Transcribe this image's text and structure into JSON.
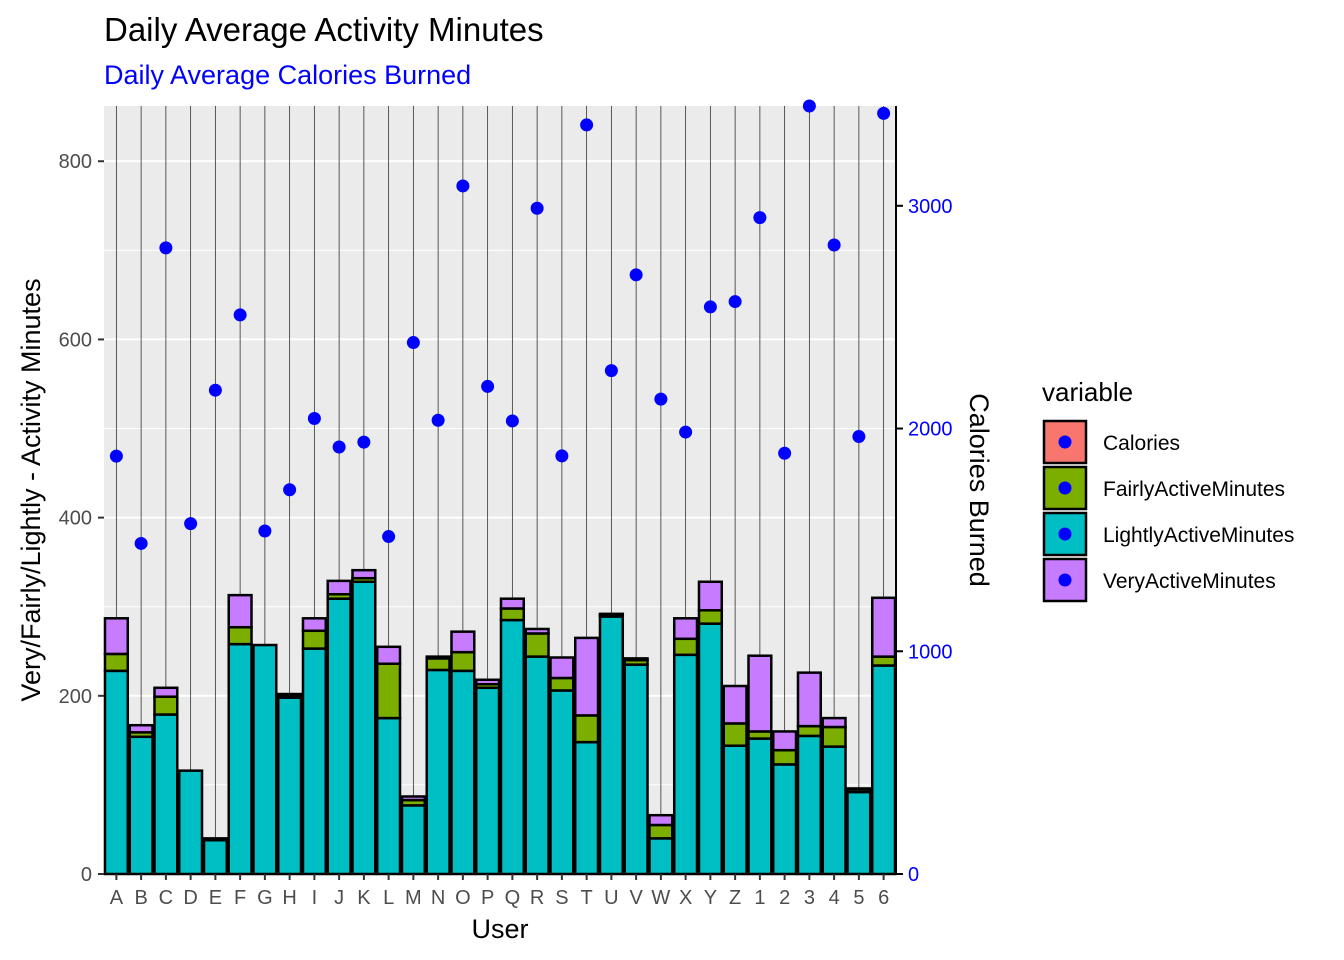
{
  "chart_data": {
    "type": "bar",
    "title": "Daily Average Activity Minutes",
    "subtitle": "Daily Average Calories Burned",
    "xlabel": "User",
    "ylabel": "Very/Fairly/Lightly - Activity Minutes",
    "y2label": "Calories Burned",
    "ylim": [
      0,
      862
    ],
    "y2lim": [
      0,
      3448
    ],
    "yticks": [
      0,
      200,
      400,
      600,
      800
    ],
    "y2ticks": [
      0,
      1000,
      2000,
      3000
    ],
    "grid": true,
    "stacked": true,
    "categories": [
      "A",
      "B",
      "C",
      "D",
      "E",
      "F",
      "G",
      "H",
      "I",
      "J",
      "K",
      "L",
      "M",
      "N",
      "O",
      "P",
      "Q",
      "R",
      "S",
      "T",
      "U",
      "V",
      "W",
      "X",
      "Y",
      "Z",
      "1",
      "2",
      "3",
      "4",
      "5",
      "6"
    ],
    "series": [
      {
        "name": "LightlyActiveMinutes",
        "color": "#00BFC4",
        "values": [
          228,
          154,
          179,
          116,
          38,
          258,
          257,
          198,
          253,
          309,
          328,
          175,
          77,
          229,
          228,
          209,
          285,
          244,
          206,
          148,
          289,
          235,
          40,
          246,
          281,
          144,
          152,
          123,
          155,
          143,
          92,
          234
        ]
      },
      {
        "name": "FairlyActiveMinutes",
        "color": "#7CAE00",
        "values": [
          19,
          5,
          20,
          0,
          0,
          19,
          0,
          2,
          20,
          5,
          4,
          61,
          6,
          13,
          21,
          4,
          13,
          26,
          14,
          30,
          2,
          5,
          15,
          18,
          15,
          25,
          8,
          16,
          11,
          22,
          3,
          10
        ]
      },
      {
        "name": "VeryActiveMinutes",
        "color": "#C77CFF",
        "values": [
          40,
          8,
          10,
          0,
          2,
          36,
          0,
          2,
          14,
          15,
          9,
          19,
          4,
          2,
          23,
          5,
          11,
          5,
          23,
          87,
          1,
          2,
          11,
          23,
          32,
          42,
          85,
          21,
          60,
          10,
          1,
          66
        ]
      }
    ],
    "calories": {
      "name": "Calories",
      "color": "#0000FF",
      "values": [
        1876,
        1484,
        2811,
        1573,
        2172,
        2510,
        1540,
        1725,
        2045,
        1917,
        1939,
        1515,
        2386,
        2037,
        3089,
        2189,
        2034,
        2989,
        1877,
        3363,
        2260,
        2690,
        2132,
        1984,
        2546,
        2570,
        2947,
        1889,
        3448,
        2824,
        1964,
        3415
      ]
    },
    "legend": {
      "title": "variable",
      "position": "right",
      "entries": [
        {
          "label": "Calories",
          "fill": "#F8766D"
        },
        {
          "label": "FairlyActiveMinutes",
          "fill": "#7CAE00"
        },
        {
          "label": "LightlyActiveMinutes",
          "fill": "#00BFC4"
        },
        {
          "label": "VeryActiveMinutes",
          "fill": "#C77CFF"
        }
      ],
      "marker_color": "#0000FF"
    },
    "colors": {
      "panel": "#EBEBEB",
      "grid": "#FFFFFF",
      "secondary": "#0000FF",
      "vline": "#333333"
    }
  }
}
